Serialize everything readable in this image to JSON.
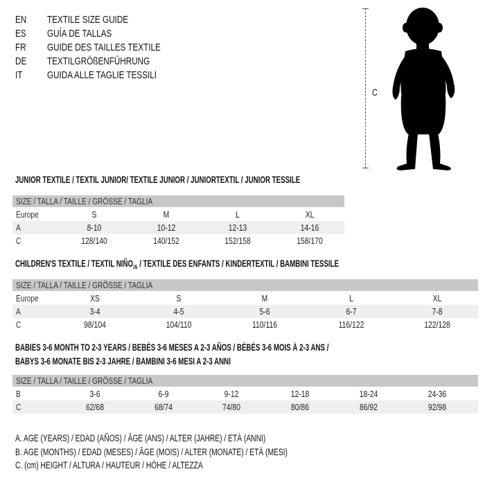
{
  "languages": [
    {
      "code": "EN",
      "title": "TEXTILE SIZE GUIDE"
    },
    {
      "code": "ES",
      "title": "GUÍA DE TALLAS"
    },
    {
      "code": "FR",
      "title": "GUIDE DES TAILLES TEXTILE"
    },
    {
      "code": "DE",
      "title": "TEXTILGRÖßENFÜHRUNG"
    },
    {
      "code": "IT",
      "title": "GUIDA ALLE TAGLIE TESSILI"
    }
  ],
  "figure": {
    "measure_label": "C",
    "icon": "baby-silhouette"
  },
  "size_header": "SIZE / TALLA / TAILLE / GRÖSSE / TAGLIA",
  "junior": {
    "heading": "JUNIOR TEXTILE / TEXTIL JUNIOR/ TEXTILE JUNIOR / JUNIORTEXTIL / JUNIOR TESSILE",
    "rows": [
      {
        "label": "Europe",
        "values": [
          "S",
          "M",
          "L",
          "XL"
        ]
      },
      {
        "label": "A",
        "values": [
          "8-10",
          "10-12",
          "12-13",
          "14-16"
        ]
      },
      {
        "label": "C",
        "values": [
          "128/140",
          "140/152",
          "152/158",
          "158/170"
        ]
      }
    ]
  },
  "children": {
    "heading_a": "CHILDREN'S TEXTILE / TEXTIL NIÑO",
    "heading_sub": "/A",
    "heading_b": " / TEXTILE DES ENFANTS / KINDERTEXTIL / BAMBINI TESSILE",
    "rows": [
      {
        "label": "Europe",
        "values": [
          "XS",
          "S",
          "M",
          "L",
          "XL"
        ]
      },
      {
        "label": "A",
        "values": [
          "3-4",
          "4-5",
          "5-6",
          "6-7",
          "7-8"
        ]
      },
      {
        "label": "C",
        "values": [
          "98/104",
          "104/110",
          "110/116",
          "116/122",
          "122/128"
        ]
      }
    ]
  },
  "babies": {
    "heading_1": "BABIES 3-6 MONTH TO 2-3 YEARS / BEBÉS 3-6 MESES A 2-3 AÑOS / BÉBÉS 3-6 MOIS À 2-3 ANS /",
    "heading_2": "BABYS 3-6 MONATE BIS 2-3 JAHRE / BAMBINI 3-6 MESI A 2-3 ANNI",
    "rows": [
      {
        "label": "B",
        "values": [
          "3-6",
          "6-9",
          "9-12",
          "12-18",
          "18-24",
          "24-36"
        ]
      },
      {
        "label": "C",
        "values": [
          "62/68",
          "68/74",
          "74/80",
          "80/86",
          "86/92",
          "92/98"
        ]
      }
    ]
  },
  "legend": [
    "A. AGE (YEARS) / EDAD (AÑOS) / ÂGE (ANS) / ALTER (JAHRE) / ETÀ (ANNI)",
    "B. AGE (MONTHS) / EDAD (MESES) / ÂGE (MOIS) / ALTER (MONATE) / ETÀ (MESI)",
    "C. (cm) HEIGHT / ALTURA / HAUTEUR / HÖHE / ALTEZZA"
  ]
}
